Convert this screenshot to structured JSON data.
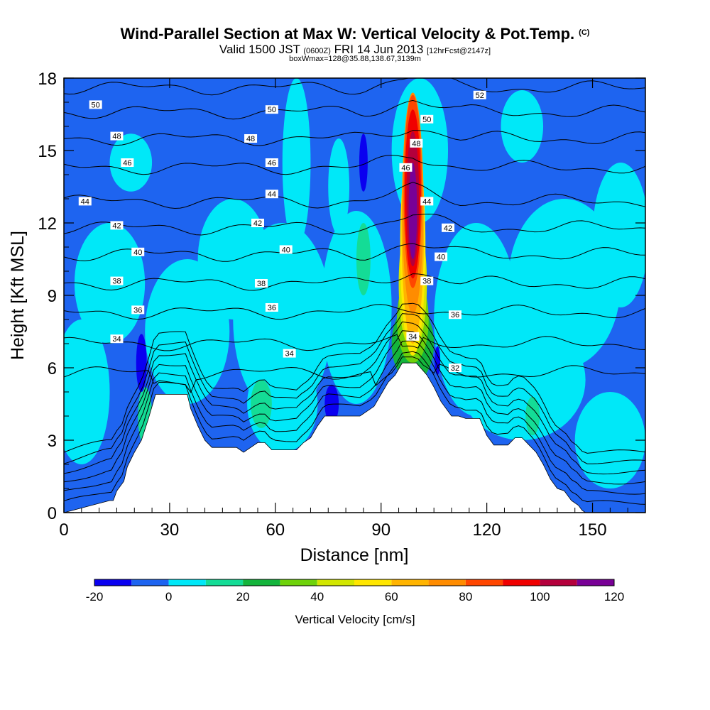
{
  "title": {
    "main": "Wind-Parallel Section at Max W: Vertical Velocity & Pot.Temp.",
    "copyright": "(C)",
    "valid_prefix": "Valid 1500 JST",
    "valid_z": "(0600Z)",
    "valid_date": "FRI 14 Jun 2013",
    "fcst": "[12hrFcst@2147z]",
    "box": "boxWmax=128@35.88,138.67,3139m"
  },
  "chart_data": {
    "type": "heatmap",
    "xlabel": "Distance [nm]",
    "ylabel": "Height [Kft MSL]",
    "xlim": [
      0,
      165
    ],
    "ylim": [
      0,
      18
    ],
    "x_ticks": [
      "0",
      "30",
      "60",
      "90",
      "120",
      "150"
    ],
    "x_tick_values": [
      0,
      30,
      60,
      90,
      120,
      150
    ],
    "y_ticks": [
      "0",
      "3",
      "6",
      "9",
      "12",
      "15",
      "18"
    ],
    "y_tick_values": [
      0,
      3,
      6,
      9,
      12,
      15,
      18
    ],
    "colorbar": {
      "label": "Vertical Velocity [cm/s]",
      "tick_labels": [
        "-20",
        "0",
        "20",
        "40",
        "60",
        "80",
        "100",
        "120"
      ],
      "levels": [
        -20,
        -10,
        0,
        10,
        20,
        30,
        40,
        50,
        60,
        70,
        80,
        90,
        100,
        110,
        120
      ],
      "colors": [
        "#0a00f0",
        "#1e64f0",
        "#00e8f8",
        "#14dc96",
        "#14b43c",
        "#6ed20a",
        "#d2e600",
        "#ffe600",
        "#ffb400",
        "#ff8c00",
        "#ff4600",
        "#f00000",
        "#b4003c",
        "#780096"
      ]
    },
    "background_value": -5,
    "terrain_kft": [
      [
        0,
        0
      ],
      [
        13,
        0.5
      ],
      [
        14,
        0.5
      ],
      [
        15,
        0.9
      ],
      [
        17,
        1.3
      ],
      [
        18,
        1.9
      ],
      [
        20,
        2.5
      ],
      [
        22,
        3.0
      ],
      [
        24,
        3.9
      ],
      [
        26,
        4.9
      ],
      [
        35,
        4.9
      ],
      [
        36,
        4.3
      ],
      [
        38,
        3.6
      ],
      [
        40,
        3.0
      ],
      [
        42,
        2.7
      ],
      [
        45,
        2.7
      ],
      [
        47,
        2.7
      ],
      [
        49,
        2.7
      ],
      [
        51,
        2.5
      ],
      [
        55,
        2.9
      ],
      [
        57,
        2.9
      ],
      [
        59,
        2.6
      ],
      [
        62,
        2.6
      ],
      [
        64,
        2.6
      ],
      [
        66,
        2.6
      ],
      [
        68,
        2.9
      ],
      [
        70,
        3.1
      ],
      [
        72,
        3.6
      ],
      [
        74,
        4.0
      ],
      [
        80,
        4.0
      ],
      [
        82,
        4.0
      ],
      [
        84,
        4.0
      ],
      [
        86,
        4.2
      ],
      [
        88,
        4.4
      ],
      [
        90,
        4.9
      ],
      [
        92,
        5.4
      ],
      [
        94,
        5.7
      ],
      [
        96,
        6.2
      ],
      [
        100,
        6.2
      ],
      [
        103,
        5.7
      ],
      [
        105,
        5.2
      ],
      [
        107,
        4.6
      ],
      [
        110,
        4.0
      ],
      [
        112,
        4.0
      ],
      [
        114,
        3.9
      ],
      [
        118,
        3.9
      ],
      [
        120,
        3.2
      ],
      [
        122,
        2.8
      ],
      [
        124,
        2.8
      ],
      [
        126,
        2.8
      ],
      [
        128,
        3.1
      ],
      [
        130,
        3.1
      ],
      [
        132,
        2.8
      ],
      [
        134,
        2.5
      ],
      [
        136,
        2.0
      ],
      [
        138,
        1.4
      ],
      [
        140,
        1.0
      ],
      [
        142,
        0.9
      ],
      [
        144,
        0.5
      ],
      [
        146,
        0.3
      ],
      [
        147,
        0.1
      ],
      [
        148,
        0
      ],
      [
        165,
        0
      ]
    ],
    "blobs": [
      {
        "value": 5,
        "x": 13,
        "y": 9.5,
        "rx": 10,
        "ry": 2.5
      },
      {
        "value": 5,
        "x": 5,
        "y": 5,
        "rx": 8,
        "ry": 3
      },
      {
        "value": 5,
        "x": 48,
        "y": 10.5,
        "rx": 10,
        "ry": 2.5
      },
      {
        "value": 5,
        "x": 35,
        "y": 7.5,
        "rx": 12,
        "ry": 3
      },
      {
        "value": 5,
        "x": 62,
        "y": 8,
        "rx": 14,
        "ry": 4
      },
      {
        "value": 5,
        "x": 62,
        "y": 4.5,
        "rx": 10,
        "ry": 2
      },
      {
        "value": 5,
        "x": 83,
        "y": 8.5,
        "rx": 10,
        "ry": 4
      },
      {
        "value": 5,
        "x": 117,
        "y": 8,
        "rx": 12,
        "ry": 4
      },
      {
        "value": 5,
        "x": 142,
        "y": 9.5,
        "rx": 16,
        "ry": 3.5
      },
      {
        "value": 5,
        "x": 158,
        "y": 11.5,
        "rx": 8,
        "ry": 3
      },
      {
        "value": 5,
        "x": 66,
        "y": 14.5,
        "rx": 4,
        "ry": 3.5
      },
      {
        "value": 5,
        "x": 78,
        "y": 13.5,
        "rx": 3,
        "ry": 2
      },
      {
        "value": 5,
        "x": 130,
        "y": 16,
        "rx": 6,
        "ry": 1.5
      },
      {
        "value": 5,
        "x": 130,
        "y": 5.5,
        "rx": 18,
        "ry": 2.5
      },
      {
        "value": 5,
        "x": 155,
        "y": 3,
        "rx": 10,
        "ry": 2
      },
      {
        "value": 5,
        "x": 19,
        "y": 14.5,
        "rx": 6,
        "ry": 1.2
      },
      {
        "value": 5,
        "x": 101,
        "y": 15,
        "rx": 8,
        "ry": 3
      },
      {
        "value": 15,
        "x": 85,
        "y": 10.5,
        "rx": 2,
        "ry": 1.5
      },
      {
        "value": 15,
        "x": 56,
        "y": 4.5,
        "rx": 3,
        "ry": 1
      },
      {
        "value": 15,
        "x": 23,
        "y": 4,
        "rx": 2,
        "ry": 1.2
      },
      {
        "value": 15,
        "x": 133,
        "y": 4,
        "rx": 2,
        "ry": 0.8
      },
      {
        "value": -15,
        "x": 22,
        "y": 6.2,
        "rx": 1.5,
        "ry": 1.2
      },
      {
        "value": -15,
        "x": 76,
        "y": 4.5,
        "rx": 2,
        "ry": 0.8
      },
      {
        "value": -15,
        "x": 85,
        "y": 14.5,
        "rx": 1.2,
        "ry": 1.2
      },
      {
        "value": -15,
        "x": 106,
        "y": 6.3,
        "rx": 0.8,
        "ry": 0.6
      },
      {
        "value": 25,
        "x": 99,
        "y": 7,
        "rx": 6,
        "ry": 1.6
      },
      {
        "value": 35,
        "x": 99,
        "y": 8,
        "rx": 4.5,
        "ry": 1.8
      },
      {
        "value": 45,
        "x": 99,
        "y": 9.5,
        "rx": 4,
        "ry": 2.8
      },
      {
        "value": 55,
        "x": 99,
        "y": 11,
        "rx": 3.6,
        "ry": 4.5
      },
      {
        "value": 65,
        "x": 99,
        "y": 12,
        "rx": 3.2,
        "ry": 5
      },
      {
        "value": 75,
        "x": 99,
        "y": 12.8,
        "rx": 3,
        "ry": 4.6
      },
      {
        "value": 85,
        "x": 99,
        "y": 13.3,
        "rx": 2.6,
        "ry": 4
      },
      {
        "value": 95,
        "x": 99,
        "y": 13.2,
        "rx": 2.3,
        "ry": 3.5
      },
      {
        "value": 105,
        "x": 99,
        "y": 13,
        "rx": 1.8,
        "ry": 2.8
      },
      {
        "value": 115,
        "x": 99,
        "y": 12.5,
        "rx": 1.2,
        "ry": 2
      }
    ],
    "isotherms": [
      {
        "label": "32",
        "base": 5.8
      },
      {
        "label": "34",
        "base": 7.0
      },
      {
        "label": "36",
        "base": 8.3
      },
      {
        "label": "38",
        "base": 9.5
      },
      {
        "label": "40",
        "base": 10.7
      },
      {
        "label": "42",
        "base": 11.8
      },
      {
        "label": "44",
        "base": 12.9
      },
      {
        "label": "46",
        "base": 14.3
      },
      {
        "label": "48",
        "base": 15.5
      },
      {
        "label": "50",
        "base": 16.6
      },
      {
        "label": "52",
        "base": 17.6
      }
    ],
    "contour_labels": [
      {
        "text": "50",
        "x": 9,
        "y": 16.9
      },
      {
        "text": "48",
        "x": 15,
        "y": 15.6
      },
      {
        "text": "46",
        "x": 18,
        "y": 14.5
      },
      {
        "text": "44",
        "x": 6,
        "y": 12.9
      },
      {
        "text": "42",
        "x": 15,
        "y": 11.9
      },
      {
        "text": "40",
        "x": 21,
        "y": 10.8
      },
      {
        "text": "38",
        "x": 15,
        "y": 9.6
      },
      {
        "text": "36",
        "x": 21,
        "y": 8.4
      },
      {
        "text": "34",
        "x": 15,
        "y": 7.2
      },
      {
        "text": "50",
        "x": 59,
        "y": 16.7
      },
      {
        "text": "48",
        "x": 53,
        "y": 15.5
      },
      {
        "text": "46",
        "x": 59,
        "y": 14.5
      },
      {
        "text": "44",
        "x": 59,
        "y": 13.2
      },
      {
        "text": "42",
        "x": 55,
        "y": 12.0
      },
      {
        "text": "40",
        "x": 63,
        "y": 10.9
      },
      {
        "text": "38",
        "x": 56,
        "y": 9.5
      },
      {
        "text": "36",
        "x": 59,
        "y": 8.5
      },
      {
        "text": "34",
        "x": 64,
        "y": 6.6
      },
      {
        "text": "52",
        "x": 118,
        "y": 17.3
      },
      {
        "text": "50",
        "x": 103,
        "y": 16.3
      },
      {
        "text": "48",
        "x": 100,
        "y": 15.3
      },
      {
        "text": "46",
        "x": 97,
        "y": 14.3
      },
      {
        "text": "44",
        "x": 103,
        "y": 12.9
      },
      {
        "text": "42",
        "x": 109,
        "y": 11.8
      },
      {
        "text": "40",
        "x": 107,
        "y": 10.6
      },
      {
        "text": "38",
        "x": 103,
        "y": 9.6
      },
      {
        "text": "36",
        "x": 111,
        "y": 8.2
      },
      {
        "text": "34",
        "x": 99,
        "y": 7.3
      },
      {
        "text": "32",
        "x": 111,
        "y": 6.0
      }
    ]
  }
}
